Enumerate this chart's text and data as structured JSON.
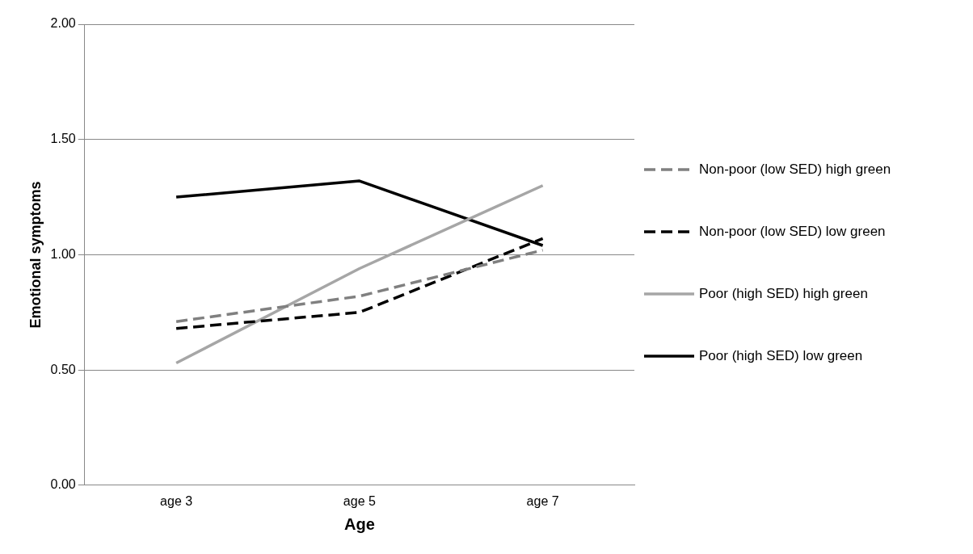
{
  "chart_data": {
    "type": "line",
    "xlabel": "Age",
    "ylabel": "Emotional symptoms",
    "categories": [
      "age 3",
      "age 5",
      "age 7"
    ],
    "series": [
      {
        "name": "Non-poor (low SED) high green",
        "color": "#808080",
        "line_style": "dashed",
        "values": [
          0.71,
          0.82,
          1.02
        ]
      },
      {
        "name": "Non-poor (low SED) low green",
        "color": "#000000",
        "line_style": "dashed",
        "values": [
          0.68,
          0.75,
          1.07
        ]
      },
      {
        "name": "Poor (high SED) high green",
        "color": "#a6a6a6",
        "line_style": "solid",
        "values": [
          0.53,
          0.94,
          1.3
        ]
      },
      {
        "name": "Poor (high SED) low green",
        "color": "#000000",
        "line_style": "solid",
        "values": [
          1.25,
          1.32,
          1.04
        ]
      }
    ],
    "ylim": [
      0,
      2
    ],
    "yticks": [
      {
        "value": 0,
        "label": "0.00"
      },
      {
        "value": 0.5,
        "label": "0.50"
      },
      {
        "value": 1,
        "label": "1.00"
      },
      {
        "value": 1.5,
        "label": "1.50"
      },
      {
        "value": 2,
        "label": "2.00"
      }
    ],
    "grid": "y",
    "legend": "right",
    "marker": "none"
  }
}
